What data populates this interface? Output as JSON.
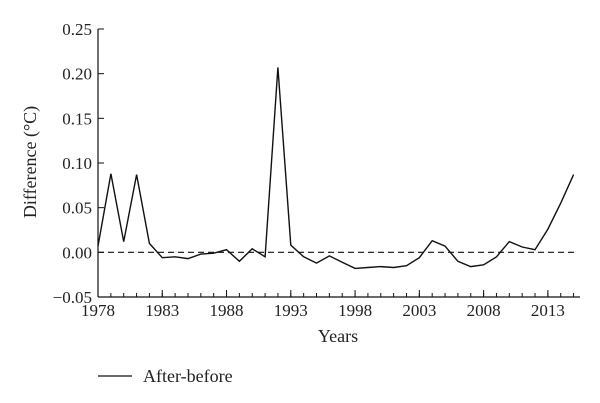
{
  "chart_data": {
    "type": "line",
    "xlabel": "Years",
    "ylabel": "Difference (°C)",
    "xlim": [
      1978,
      2015.5
    ],
    "ylim": [
      -0.05,
      0.25
    ],
    "x_ticks": [
      1978,
      1983,
      1988,
      1993,
      1998,
      2003,
      2008,
      2013
    ],
    "y_ticks": [
      "−0.05",
      "0.00",
      "0.05",
      "0.10",
      "0.15",
      "0.20",
      "0.25"
    ],
    "y_tick_values": [
      -0.05,
      0.0,
      0.05,
      0.1,
      0.15,
      0.2,
      0.25
    ],
    "reference_line": {
      "y": 0.0,
      "style": "dashed"
    },
    "legend_placement": "bottom-left",
    "series": [
      {
        "name": "After-before",
        "color": "#111111",
        "x": [
          1978,
          1979,
          1980,
          1981,
          1982,
          1983,
          1984,
          1985,
          1986,
          1987,
          1988,
          1989,
          1990,
          1991,
          1992,
          1993,
          1994,
          1995,
          1996,
          1997,
          1998,
          1999,
          2000,
          2001,
          2002,
          2003,
          2004,
          2005,
          2006,
          2007,
          2008,
          2009,
          2010,
          2011,
          2012,
          2013,
          2014,
          2015
        ],
        "y": [
          0.007,
          0.088,
          0.012,
          0.087,
          0.01,
          -0.006,
          -0.005,
          -0.007,
          -0.002,
          -0.001,
          0.003,
          -0.01,
          0.004,
          -0.005,
          0.207,
          0.008,
          -0.005,
          -0.012,
          -0.004,
          -0.011,
          -0.018,
          -0.017,
          -0.016,
          -0.017,
          -0.015,
          -0.006,
          0.013,
          0.007,
          -0.01,
          -0.016,
          -0.014,
          -0.005,
          0.012,
          0.006,
          0.003,
          0.026,
          0.055,
          0.087
        ]
      }
    ]
  }
}
